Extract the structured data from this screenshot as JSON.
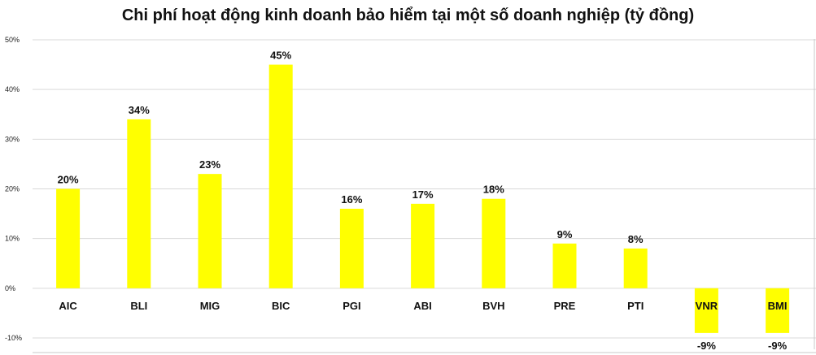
{
  "chart_data": {
    "type": "bar",
    "title": "Chi phí hoạt động kinh doanh bảo hiểm tại một số doanh nghiệp (tỷ đồng)",
    "categories": [
      "AIC",
      "BLI",
      "MIG",
      "BIC",
      "PGI",
      "ABI",
      "BVH",
      "PRE",
      "PTI",
      "VNR",
      "BMI"
    ],
    "values": [
      20,
      34,
      23,
      45,
      16,
      17,
      18,
      9,
      8,
      -9,
      -9
    ],
    "data_labels": [
      "20%",
      "34%",
      "23%",
      "45%",
      "16%",
      "17%",
      "18%",
      "9%",
      "8%",
      "-9%",
      "-9%"
    ],
    "yticks": [
      50,
      40,
      30,
      20,
      10,
      0,
      -10
    ],
    "ytick_labels": [
      "50%",
      "40%",
      "30%",
      "20%",
      "10%",
      "0%",
      "-10%"
    ],
    "ylim": [
      -10,
      50
    ],
    "xlabel": "",
    "ylabel": "",
    "grid": true,
    "legend": "none",
    "bar_color": "#ffff00"
  }
}
